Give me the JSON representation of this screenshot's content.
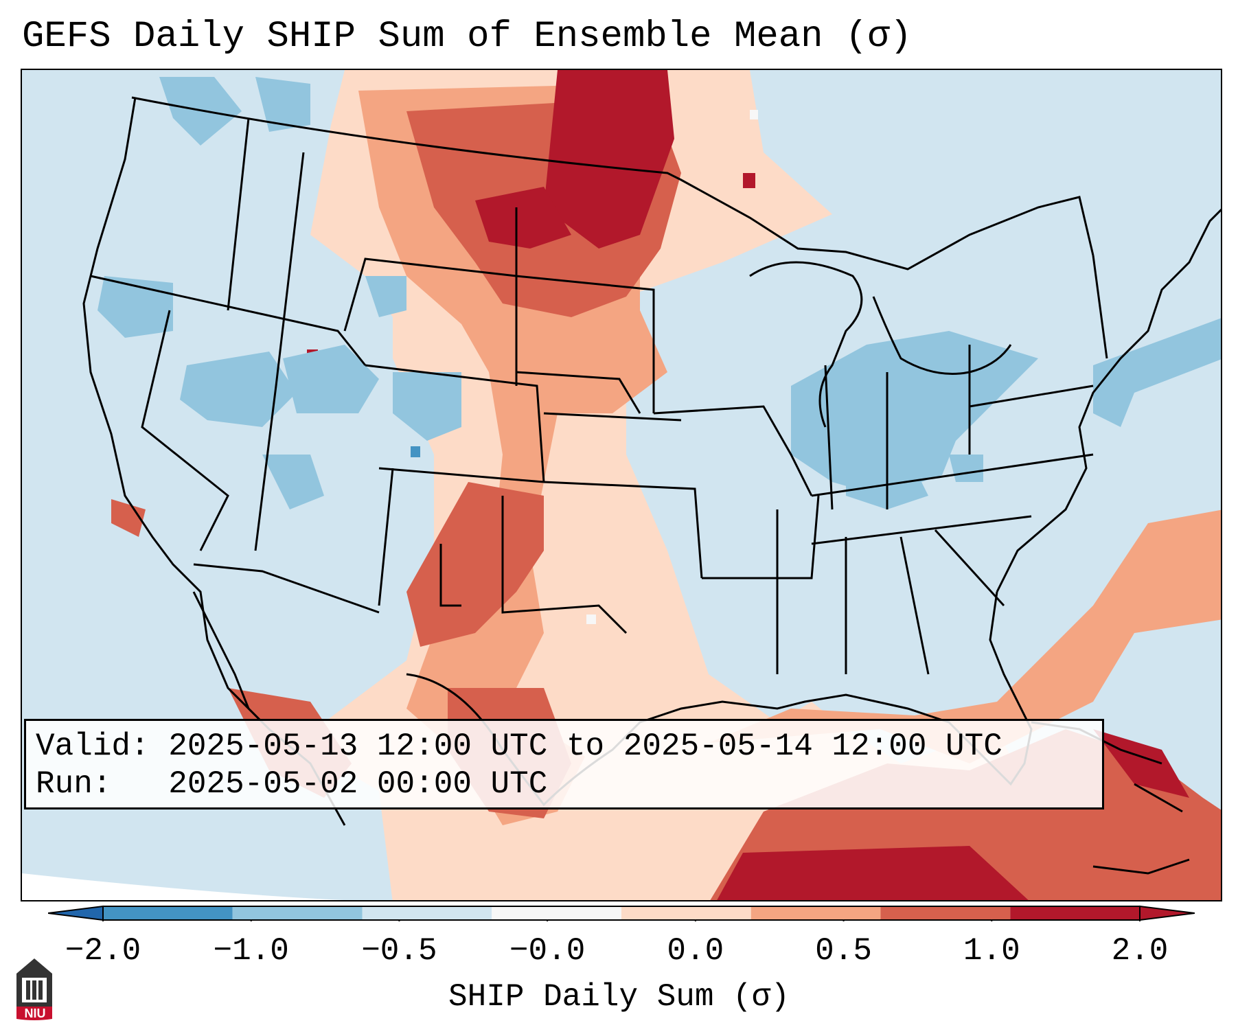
{
  "title": "GEFS Daily SHIP Sum of Ensemble Mean (σ)",
  "info": {
    "valid_label": "Valid:",
    "valid_value": "2025-05-13 12:00 UTC to 2025-05-14 12:00 UTC",
    "run_label": "Run:",
    "run_value": "2025-05-02 00:00 UTC"
  },
  "colorbar": {
    "label": "SHIP Daily Sum (σ)",
    "tick_labels": [
      "−2.0",
      "−1.0",
      "−0.5",
      "−0.0",
      "0.0",
      "0.5",
      "1.0",
      "2.0"
    ],
    "colors": [
      "#4393c3",
      "#92c5de",
      "#d1e5f0",
      "#f7f7f7",
      "#fddbc7",
      "#f4a582",
      "#d6604d",
      "#b2182b"
    ],
    "extend_low_color": "#2166ac",
    "extend_high_color": "#b2182b"
  },
  "logo": {
    "text": "NIU",
    "icon": "niu-logo-icon"
  },
  "map": {
    "background_color": "#d1e5f0",
    "outside_color": "#ffffff",
    "border_color": "#000000"
  }
}
